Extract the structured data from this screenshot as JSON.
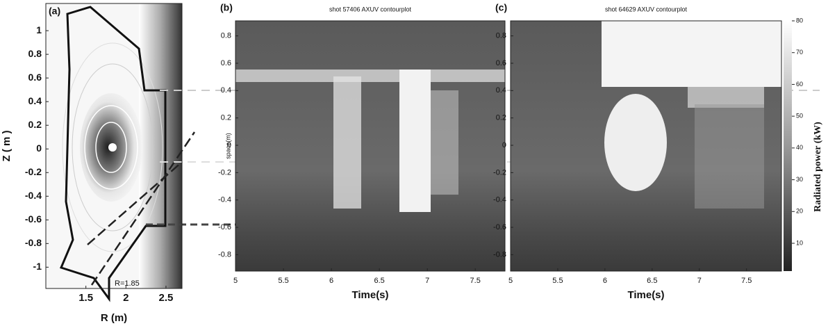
{
  "chart_data": [
    {
      "type": "contour",
      "panel_label": "(a)",
      "xlabel": "R (m)",
      "ylabel": "Z ( m )",
      "annotation": "R=1.85",
      "xlim": [
        1.0,
        2.7
      ],
      "ylim": [
        -1.18,
        1.23
      ],
      "xticks": [
        1.5,
        2,
        2.5
      ],
      "yticks": [
        1,
        0.8,
        0.6,
        0.4,
        0.2,
        0,
        -0.2,
        -0.4,
        -0.6,
        -0.8,
        -1
      ]
    },
    {
      "type": "heatmap",
      "panel_label": "(b)",
      "title": "shot 57406 AXUV contourplot",
      "xlabel": "Time(s)",
      "ylabel": "space(m)",
      "xlim": [
        5,
        7.81
      ],
      "ylim": [
        -0.92,
        0.91
      ],
      "xticks": [
        5,
        5.5,
        6,
        6.5,
        7,
        7.5
      ],
      "yticks": [
        0.8,
        0.6,
        0.4,
        0.2,
        0,
        -0.2,
        -0.4,
        -0.6,
        -0.8
      ]
    },
    {
      "type": "heatmap",
      "panel_label": "(c)",
      "title": "shot 64629 AXUV contourplot",
      "xlabel": "Time(s)",
      "xlim": [
        5,
        7.87
      ],
      "ylim": [
        -0.92,
        0.91
      ],
      "xticks": [
        5,
        5.5,
        6,
        6.5,
        7,
        7.5
      ],
      "yticks": [
        0.8,
        0.6,
        0.4,
        0.2,
        0,
        -0.2,
        -0.4,
        -0.6,
        -0.8
      ],
      "colorbar": {
        "label": "Radiated power (kW)",
        "clim": [
          1.25,
          80
        ],
        "ticks": [
          80,
          70,
          60,
          50,
          40,
          30,
          20,
          10
        ]
      }
    }
  ]
}
